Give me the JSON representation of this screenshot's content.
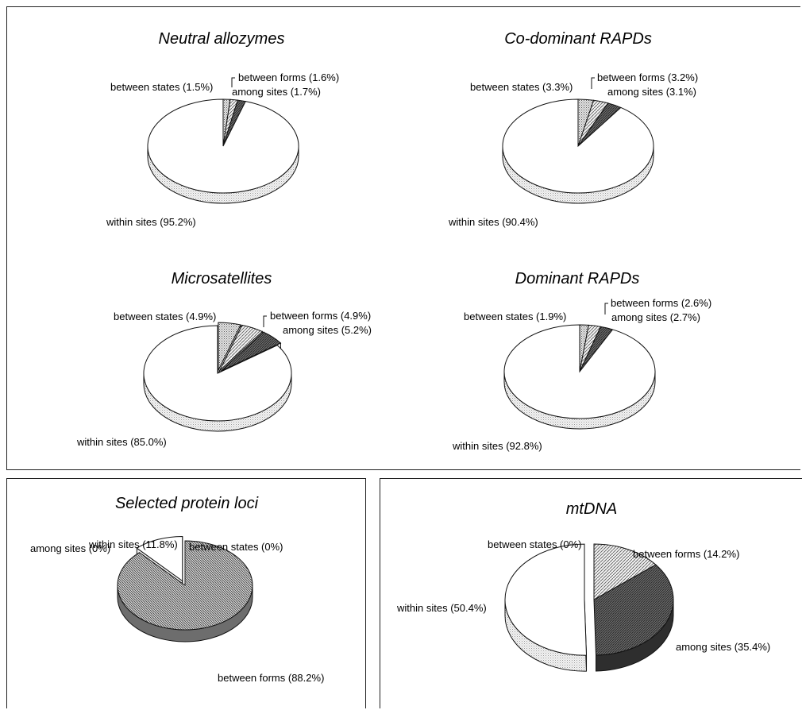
{
  "chart_data": [
    {
      "type": "pie",
      "title": "Neutral allozymes",
      "slices": [
        {
          "label": "between states (1.5%)",
          "value": 1.5,
          "color": "#b8b8b8",
          "hatch": "dots"
        },
        {
          "label": "between forms (1.6%)",
          "value": 1.6,
          "color": "#d8d8d8",
          "hatch": "lines"
        },
        {
          "label": "among sites (1.7%)",
          "value": 1.7,
          "color": "#6e6e6e",
          "hatch": "dark"
        },
        {
          "label": "within sites (95.2%)",
          "value": 95.2,
          "color": "#ffffff",
          "hatch": "none"
        }
      ]
    },
    {
      "type": "pie",
      "title": "Co-dominant RAPDs",
      "slices": [
        {
          "label": "between states (3.3%)",
          "value": 3.3,
          "color": "#b8b8b8",
          "hatch": "dots"
        },
        {
          "label": "between forms (3.2%)",
          "value": 3.2,
          "color": "#d8d8d8",
          "hatch": "lines"
        },
        {
          "label": "among sites (3.1%)",
          "value": 3.1,
          "color": "#6e6e6e",
          "hatch": "dark"
        },
        {
          "label": "within sites (90.4%)",
          "value": 90.4,
          "color": "#ffffff",
          "hatch": "none"
        }
      ]
    },
    {
      "type": "pie",
      "title": "Microsatellites",
      "slices": [
        {
          "label": "between states (4.9%)",
          "value": 4.9,
          "color": "#b8b8b8",
          "hatch": "dots"
        },
        {
          "label": "between forms (4.9%)",
          "value": 4.9,
          "color": "#d8d8d8",
          "hatch": "lines"
        },
        {
          "label": "among sites (5.2%)",
          "value": 5.2,
          "color": "#6e6e6e",
          "hatch": "dark"
        },
        {
          "label": "within sites (85.0%)",
          "value": 85.0,
          "color": "#ffffff",
          "hatch": "none"
        }
      ]
    },
    {
      "type": "pie",
      "title": "Dominant RAPDs",
      "slices": [
        {
          "label": "between states (1.9%)",
          "value": 1.9,
          "color": "#b8b8b8",
          "hatch": "dots"
        },
        {
          "label": "between forms (2.6%)",
          "value": 2.6,
          "color": "#d8d8d8",
          "hatch": "lines"
        },
        {
          "label": "among sites (2.7%)",
          "value": 2.7,
          "color": "#6e6e6e",
          "hatch": "dark"
        },
        {
          "label": "within sites (92.8%)",
          "value": 92.8,
          "color": "#ffffff",
          "hatch": "none"
        }
      ]
    },
    {
      "type": "pie",
      "title": "Selected protein loci",
      "slices": [
        {
          "label": "between states (0%)",
          "value": 0,
          "color": "#b8b8b8",
          "hatch": "dots"
        },
        {
          "label": "between forms (88.2%)",
          "value": 88.2,
          "color": "#b0b0b0",
          "hatch": "lines"
        },
        {
          "label": "among sites (0%)",
          "value": 0,
          "color": "#6e6e6e",
          "hatch": "dark"
        },
        {
          "label": "within sites (11.8%)",
          "value": 11.8,
          "color": "#ffffff",
          "hatch": "none"
        }
      ]
    },
    {
      "type": "pie",
      "title": "mtDNA",
      "slices": [
        {
          "label": "between states (0%)",
          "value": 0,
          "color": "#b8b8b8",
          "hatch": "dots"
        },
        {
          "label": "between forms (14.2%)",
          "value": 14.2,
          "color": "#c8c8c8",
          "hatch": "lines"
        },
        {
          "label": "among sites (35.4%)",
          "value": 35.4,
          "color": "#4a4a4a",
          "hatch": "dark"
        },
        {
          "label": "within sites (50.4%)",
          "value": 50.4,
          "color": "#ffffff",
          "hatch": "none"
        }
      ]
    }
  ]
}
